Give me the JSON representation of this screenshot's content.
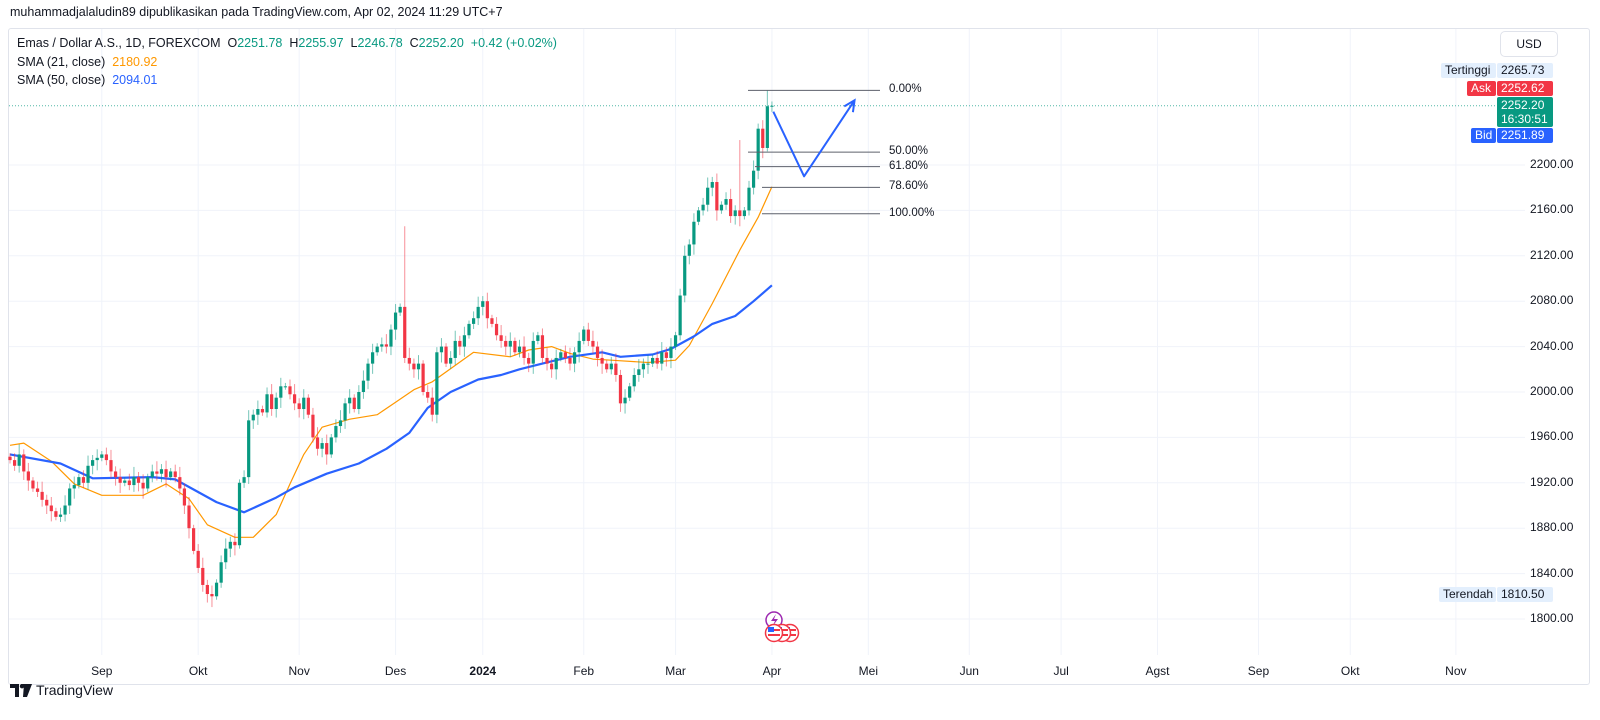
{
  "header": {
    "text": "muhammadjalaludin89 dipublikasikan pada TradingView.com, Apr 02, 2024 11:29 UTC+7"
  },
  "legend": {
    "symbol": "Emas / Dollar A.S., 1D, FOREXCOM",
    "o_label": "O",
    "o": "2251.78",
    "h_label": "H",
    "h": "2255.97",
    "l_label": "L",
    "l": "2246.78",
    "c_label": "C",
    "c": "2252.20",
    "change": "+0.42 (+0.02%)",
    "sma21_label": "SMA (21, close)",
    "sma21": "2180.92",
    "sma50_label": "SMA (50, close)",
    "sma50": "2094.01"
  },
  "price_axis": {
    "currency": "USD",
    "high_label": "Tertinggi",
    "high_value": "2265.73",
    "ask_label": "Ask",
    "ask_value": "2252.62",
    "last_price": "2252.20",
    "countdown": "16:30:51",
    "bid_label": "Bid",
    "bid_value": "2251.89",
    "low_label": "Terendah",
    "low_value": "1810.50"
  },
  "footer": {
    "brand": "TradingView"
  },
  "colors": {
    "up": "#089981",
    "down": "#f23645",
    "sma21": "#ff9800",
    "sma50": "#2962ff",
    "arrow": "#2962ff",
    "fib": "#5d606b"
  },
  "chart_data": {
    "type": "candlestick",
    "title": "Emas / Dollar A.S., 1D, FOREXCOM",
    "ylim": [
      1780,
      2280
    ],
    "y_ticks": [
      2200,
      2160,
      2120,
      2080,
      2040,
      2000,
      1960,
      1920,
      1880,
      1840,
      1800
    ],
    "y_tick_labels": [
      "2200.00",
      "2160.00",
      "2120.00",
      "2080.00",
      "2040.00",
      "2000.00",
      "1960.00",
      "1920.00",
      "1880.00",
      "1840.00",
      "1800.00"
    ],
    "x_tick_labels": [
      "Sep",
      "Okt",
      "Nov",
      "Des",
      "2024",
      "Feb",
      "Mar",
      "Apr",
      "Mei",
      "Jun",
      "Jul",
      "Agst",
      "Sep",
      "Okt",
      "Nov"
    ],
    "x_tick_bar_index": [
      20,
      41,
      63,
      84,
      103,
      125,
      145,
      166,
      187,
      209,
      229,
      250,
      272,
      292,
      315
    ],
    "close": [
      1940,
      1935,
      1945,
      1930,
      1922,
      1915,
      1912,
      1905,
      1900,
      1895,
      1890,
      1892,
      1900,
      1915,
      1918,
      1925,
      1920,
      1935,
      1940,
      1942,
      1945,
      1940,
      1930,
      1925,
      1920,
      1922,
      1918,
      1925,
      1920,
      1915,
      1925,
      1930,
      1928,
      1932,
      1925,
      1930,
      1925,
      1915,
      1900,
      1880,
      1860,
      1845,
      1830,
      1822,
      1820,
      1832,
      1850,
      1862,
      1868,
      1865,
      1920,
      1925,
      1975,
      1980,
      1985,
      1982,
      1998,
      1985,
      1995,
      2005,
      2005,
      1998,
      1990,
      1985,
      1995,
      1980,
      1960,
      1950,
      1955,
      1945,
      1960,
      1970,
      1975,
      1990,
      1995,
      1985,
      2000,
      2010,
      2025,
      2035,
      2040,
      2042,
      2040,
      2055,
      2070,
      2075,
      2030,
      2025,
      2020,
      2025,
      2000,
      1995,
      1980,
      2035,
      2040,
      2025,
      2030,
      2045,
      2040,
      2050,
      2060,
      2065,
      2075,
      2080,
      2065,
      2060,
      2050,
      2045,
      2040,
      2045,
      2035,
      2040,
      2030,
      2025,
      2045,
      2050,
      2030,
      2025,
      2020,
      2030,
      2035,
      2030,
      2025,
      2035,
      2045,
      2055,
      2045,
      2040,
      2030,
      2025,
      2020,
      2025,
      2015,
      1990,
      1995,
      2005,
      2015,
      2020,
      2025,
      2025,
      2030,
      2025,
      2035,
      2030,
      2040,
      2050,
      2085,
      2120,
      2130,
      2150,
      2160,
      2165,
      2180,
      2185,
      2160,
      2165,
      2170,
      2155,
      2160,
      2155,
      2160,
      2180,
      2195,
      2232,
      2215,
      2251.78,
      2252.2
    ],
    "high_overrides": {
      "86": 2146,
      "159": 2222,
      "165": 2265.73,
      "166": 2255.97
    },
    "low_overrides": {
      "44": 1810.5,
      "166": 2246.78
    },
    "open_overrides": {
      "166": 2251.78
    },
    "series": [
      {
        "name": "SMA (21, close)",
        "points": [
          [
            0,
            1953
          ],
          [
            3,
            1955
          ],
          [
            9,
            1939
          ],
          [
            14,
            1919
          ],
          [
            20,
            1909
          ],
          [
            29,
            1909
          ],
          [
            34,
            1919
          ],
          [
            39,
            1906
          ],
          [
            43,
            1883
          ],
          [
            49,
            1872
          ],
          [
            53,
            1872
          ],
          [
            58,
            1892
          ],
          [
            61,
            1919
          ],
          [
            64,
            1945
          ],
          [
            68,
            1969
          ],
          [
            74,
            1976
          ],
          [
            80,
            1980
          ],
          [
            84,
            1991
          ],
          [
            88,
            2002
          ],
          [
            92,
            2009
          ],
          [
            101,
            2035
          ],
          [
            109,
            2031
          ],
          [
            113,
            2037
          ],
          [
            118,
            2040
          ],
          [
            122,
            2034
          ],
          [
            127,
            2029
          ],
          [
            131,
            2028
          ],
          [
            139,
            2026
          ],
          [
            145,
            2028
          ],
          [
            148,
            2041
          ],
          [
            153,
            2078
          ],
          [
            159,
            2125
          ],
          [
            163,
            2154
          ],
          [
            166,
            2180.92
          ]
        ]
      },
      {
        "name": "SMA (50, close)",
        "points": [
          [
            0,
            1945
          ],
          [
            11,
            1937
          ],
          [
            18,
            1924
          ],
          [
            31,
            1925
          ],
          [
            36,
            1923
          ],
          [
            45,
            1903
          ],
          [
            51,
            1894
          ],
          [
            58,
            1907
          ],
          [
            62,
            1916
          ],
          [
            69,
            1928
          ],
          [
            76,
            1937
          ],
          [
            82,
            1950
          ],
          [
            87,
            1964
          ],
          [
            91,
            1986
          ],
          [
            96,
            2000
          ],
          [
            102,
            2011
          ],
          [
            107,
            2015
          ],
          [
            111,
            2020
          ],
          [
            116,
            2025
          ],
          [
            122,
            2031
          ],
          [
            129,
            2035
          ],
          [
            133,
            2031
          ],
          [
            140,
            2033
          ],
          [
            144,
            2038
          ],
          [
            149,
            2049
          ],
          [
            153,
            2060
          ],
          [
            158,
            2067
          ],
          [
            162,
            2080
          ],
          [
            166,
            2094.01
          ]
        ]
      }
    ],
    "fibonacci": {
      "high": 2265.73,
      "low": 2157,
      "levels": [
        {
          "ratio": 0,
          "label": "0.00%"
        },
        {
          "ratio": 0.5,
          "label": "50.00%"
        },
        {
          "ratio": 0.618,
          "label": "61.80%"
        },
        {
          "ratio": 0.786,
          "label": "78.60%"
        },
        {
          "ratio": 1,
          "label": "100.00%"
        }
      ]
    },
    "projection_arrow": [
      [
        166.3,
        2247
      ],
      [
        173,
        2190
      ],
      [
        184,
        2257
      ]
    ]
  }
}
